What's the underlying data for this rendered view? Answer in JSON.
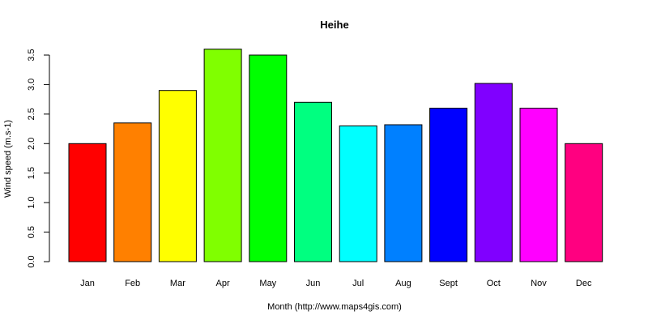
{
  "chart_data": {
    "type": "bar",
    "title": "Heihe",
    "xlabel": "Month (http://www.maps4gis.com)",
    "ylabel": "Wind speed (m.s-1)",
    "ylim": [
      0,
      3.5
    ],
    "yticks": [
      "0.0",
      "0.5",
      "1.0",
      "1.5",
      "2.0",
      "2.5",
      "3.0",
      "3.5"
    ],
    "categories": [
      "Jan",
      "Feb",
      "Mar",
      "Apr",
      "May",
      "Jun",
      "Jul",
      "Aug",
      "Sept",
      "Oct",
      "Nov",
      "Dec"
    ],
    "values": [
      2.0,
      2.35,
      2.9,
      3.6,
      3.5,
      2.7,
      2.3,
      2.32,
      2.6,
      3.02,
      2.6,
      2.0
    ],
    "colors": [
      "#FF0000",
      "#FF8000",
      "#FFFF00",
      "#80FF00",
      "#00FF00",
      "#00FF80",
      "#00FFFF",
      "#0080FF",
      "#0000FF",
      "#8000FF",
      "#FF00FF",
      "#FF0080"
    ],
    "grid": false,
    "legend": "none"
  }
}
